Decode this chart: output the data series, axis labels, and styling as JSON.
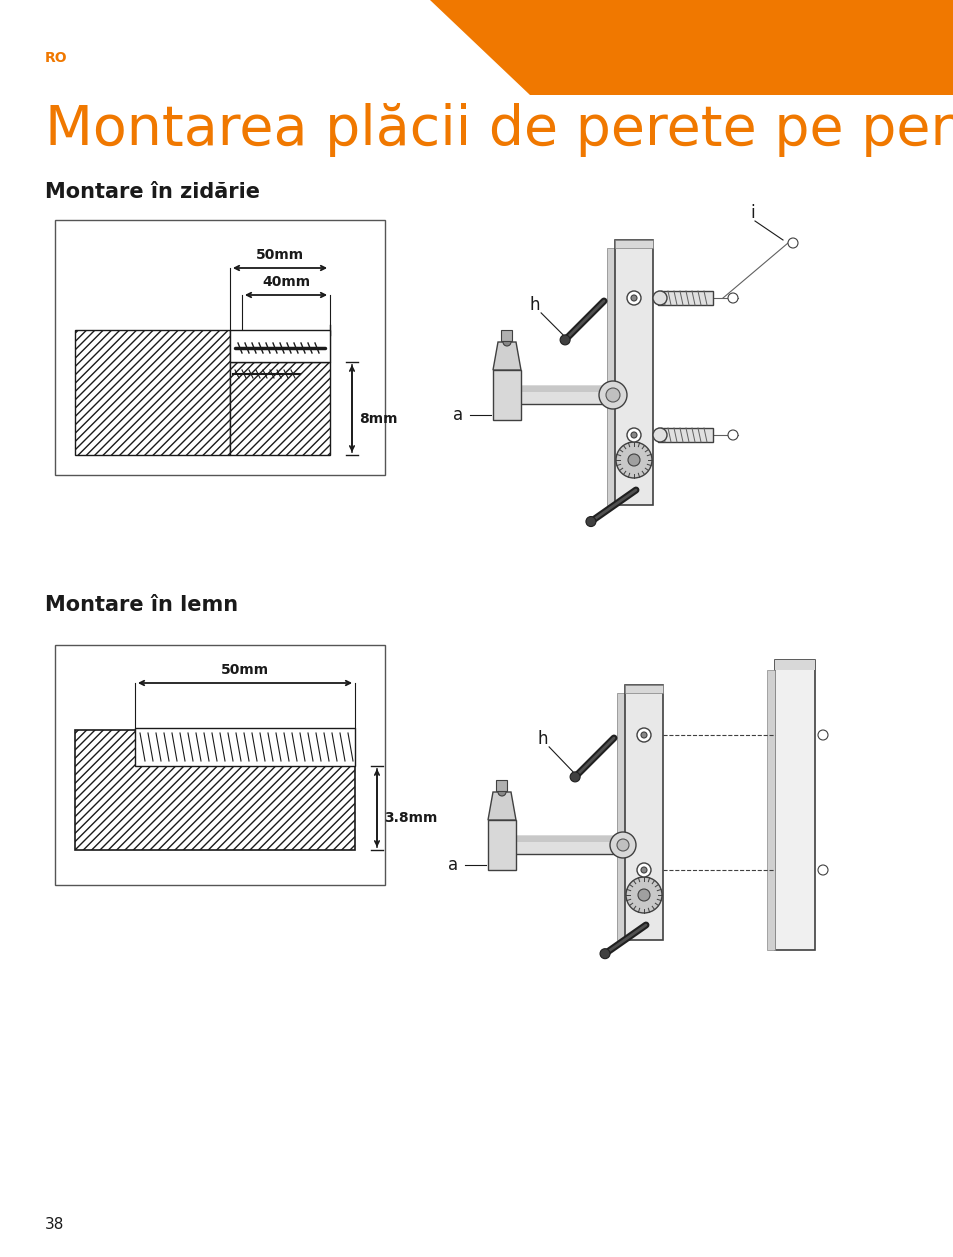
{
  "title": "Montarea plăcii de perete pe perete",
  "lang_label": "RO",
  "section1": "Montare în zidărie",
  "section2": "Montare în lemn",
  "dim1_top": "50mm",
  "dim1_mid": "40mm",
  "dim1_bot": "8mm",
  "dim2_top": "50mm",
  "dim2_bot": "3.8mm",
  "label_a": "a",
  "label_h": "h",
  "label_i": "i",
  "page_number": "38",
  "orange_color": "#F07800",
  "dark_color": "#1a1a1a",
  "bg_color": "#ffffff",
  "gray_color": "#888888",
  "light_gray": "#cccccc",
  "mid_gray": "#aaaaaa"
}
